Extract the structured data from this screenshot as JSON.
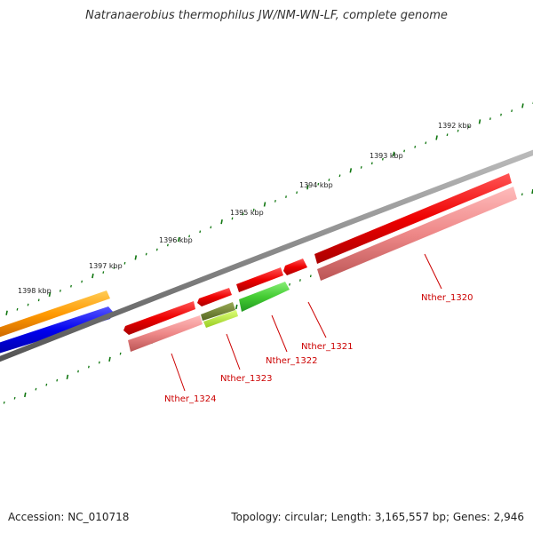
{
  "title": "Natranaerobius thermophilus JW/NM-WN-LF, complete genome",
  "footer": {
    "accession": "Accession: NC_010718",
    "summary": "Topology: circular; Length: 3,165,557 bp; Genes: 2,946"
  },
  "scale_labels": [
    "1392 kbp",
    "1393 kbp",
    "1394 kbp",
    "1395 kbp",
    "1396 kbp",
    "1397 kbp",
    "1398 kbp"
  ],
  "gene_labels": [
    "Nther_1320",
    "Nther_1321",
    "Nther_1322",
    "Nther_1323",
    "Nther_1324"
  ],
  "colors": {
    "gene_red": "#ee0000",
    "gene_pink": "#ee8888",
    "gene_green": "#44cc33",
    "gene_olive": "#778833",
    "gene_lime": "#bbee44",
    "gene_orange": "#ff9900",
    "gene_blue": "#0000ee",
    "backbone": "#888888",
    "tick_green": "#117711",
    "label_red": "#cc0000"
  }
}
